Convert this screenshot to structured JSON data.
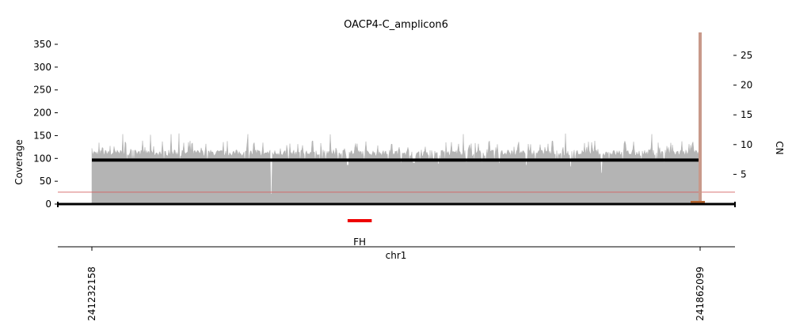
{
  "chart_data": {
    "type": "area",
    "title": "OACP4-C_amplicon6",
    "ylabel": "Coverage",
    "y2label": "CN",
    "xlabel": "chr1",
    "x_range": [
      241232158,
      241862099
    ],
    "x_ticks": [
      "241232158",
      "241862099"
    ],
    "ylim": [
      0,
      375
    ],
    "y_ticks": [
      0,
      50,
      100,
      150,
      200,
      250,
      300,
      350
    ],
    "y2lim": [
      0,
      28.8
    ],
    "y2_ticks": [
      5,
      10,
      15,
      20,
      25
    ],
    "grid": false,
    "coverage_baseline": 113,
    "coverage_peak_max": 157,
    "coverage_dips": [
      {
        "x": 241418000,
        "value": 22
      },
      {
        "x": 241497000,
        "value": 85
      },
      {
        "x": 241566000,
        "value": 90
      },
      {
        "x": 241591000,
        "value": 88
      },
      {
        "x": 241586000,
        "value": 95
      },
      {
        "x": 241620000,
        "value": 92
      },
      {
        "x": 241636000,
        "value": 92
      },
      {
        "x": 241654000,
        "value": 90
      },
      {
        "x": 241682000,
        "value": 85
      },
      {
        "x": 241728000,
        "value": 82
      },
      {
        "x": 241760000,
        "value": 68
      },
      {
        "x": 241825000,
        "value": 92
      }
    ],
    "copy_number_segment": {
      "start": 241232158,
      "end": 241862099,
      "cn": 7.4
    },
    "threshold_line_cn": 2,
    "breakpoint": {
      "x": 241862099,
      "color": "#c8998a"
    },
    "genes": [
      {
        "name": "FH",
        "start": 241497000,
        "end": 241522000,
        "color": "#ee0000"
      }
    ],
    "colors": {
      "coverage": "#b4b4b4",
      "copy_number": "#000000",
      "threshold": "#d46060",
      "breakpoint": "#c8998a"
    }
  }
}
